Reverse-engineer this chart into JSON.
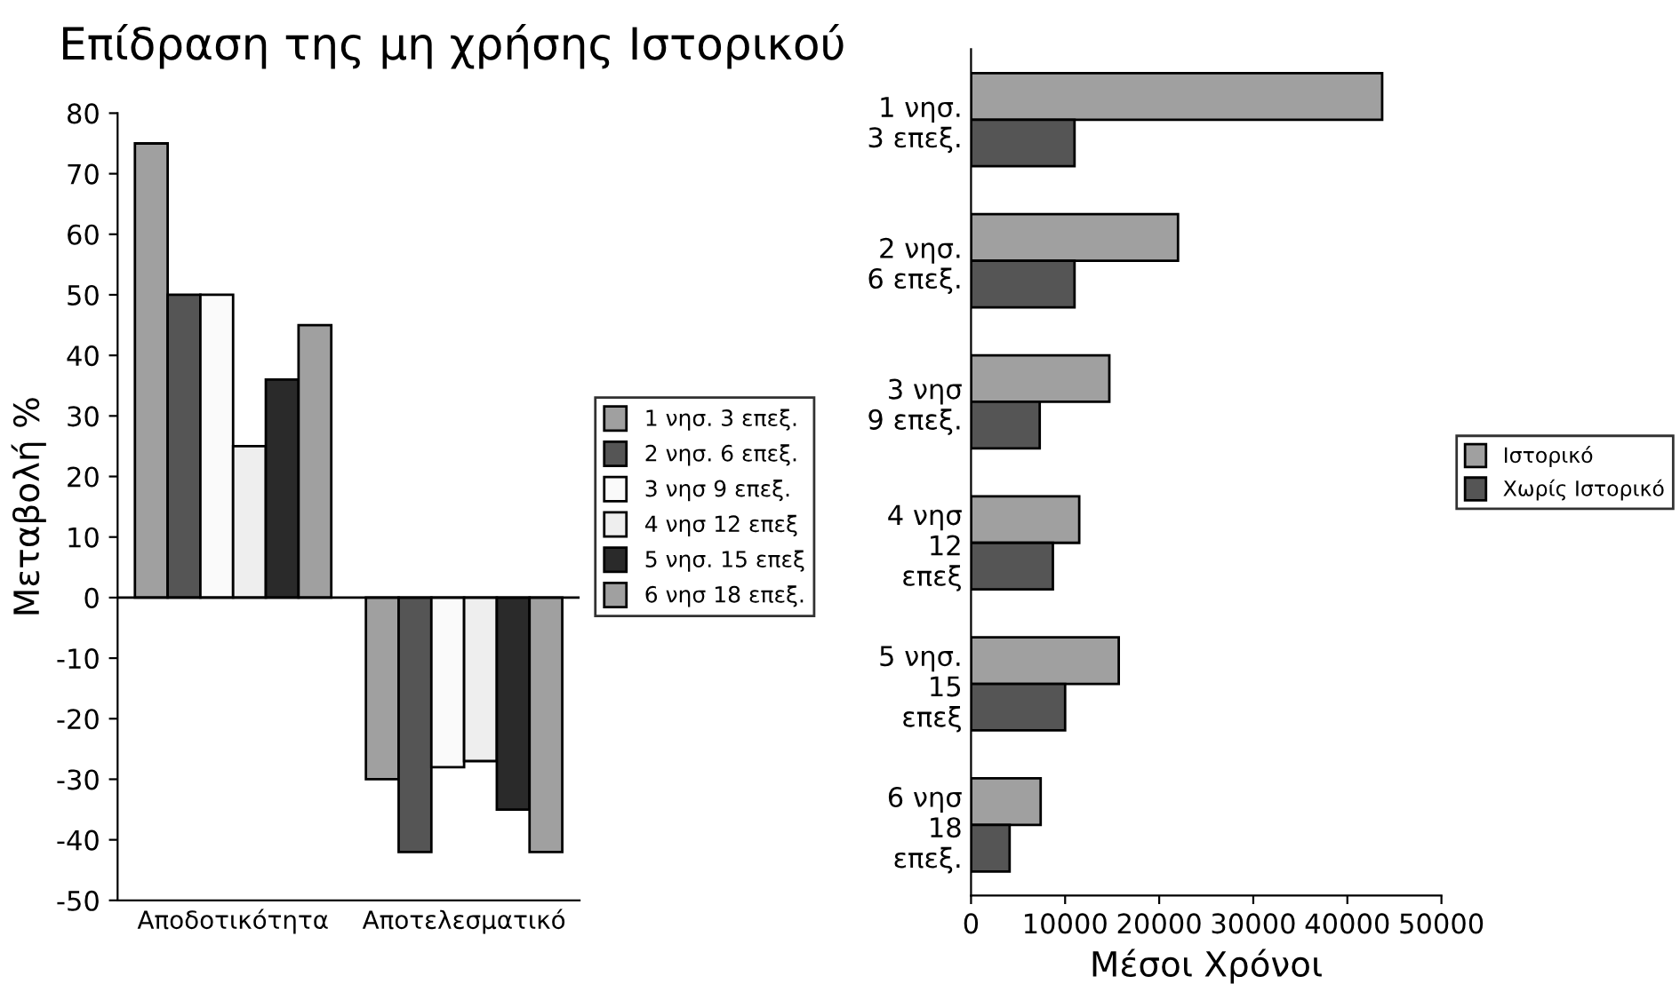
{
  "chart_data": [
    {
      "type": "bar",
      "title": "Επίδραση της μη χρήσης Ιστορικού",
      "ylabel": "Μεταβολή %",
      "categories": [
        "Αποδοτικότητα",
        "Αποτελεσματικό"
      ],
      "series": [
        {
          "name": "1 νησ. 3 επεξ.",
          "color": "#a0a0a0",
          "values": [
            75,
            -30
          ]
        },
        {
          "name": "2 νησ. 6 επεξ.",
          "color": "#555555",
          "values": [
            50,
            -42
          ]
        },
        {
          "name": "3 νησ 9 επεξ.",
          "color": "#fafafa",
          "values": [
            50,
            -28
          ]
        },
        {
          "name": "4 νησ 12 επεξ",
          "color": "#eeeeee",
          "values": [
            25,
            -27
          ]
        },
        {
          "name": "5 νησ. 15 επεξ",
          "color": "#2a2a2a",
          "values": [
            36,
            -35
          ]
        },
        {
          "name": "6 νησ 18 επεξ.",
          "color": "#a0a0a0",
          "values": [
            45,
            -42
          ]
        }
      ],
      "ylim": [
        -50,
        80
      ],
      "yticks": [
        -50,
        -40,
        -30,
        -20,
        -10,
        0,
        10,
        20,
        30,
        40,
        50,
        60,
        70,
        80
      ],
      "ref_lines": [
        {
          "axis": "y",
          "value": 0,
          "color": "#000000"
        }
      ],
      "grid": false,
      "legend": "right"
    },
    {
      "type": "bar",
      "orientation": "horizontal",
      "xlabel": "Μέσοι Χρόνοι",
      "categories": [
        "1 νησ.\n3 επεξ.",
        "2 νησ.\n6 επεξ.",
        "3 νησ\n9 επεξ.",
        "4 νησ\n12\nεπεξ",
        "5 νησ.\n15\nεπεξ",
        "6 νησ\n18\nεπεξ."
      ],
      "series": [
        {
          "name": "Ιστορικό",
          "color": "#a0a0a0",
          "values": [
            43700,
            22000,
            14700,
            11500,
            15700,
            7400
          ]
        },
        {
          "name": "Χωρίς Ιστορικό",
          "color": "#555555",
          "values": [
            11000,
            11000,
            7300,
            8700,
            10000,
            4100
          ]
        }
      ],
      "xlim": [
        0,
        50000
      ],
      "xticks": [
        0,
        10000,
        20000,
        30000,
        40000,
        50000
      ],
      "grid": false,
      "legend": "right"
    }
  ]
}
